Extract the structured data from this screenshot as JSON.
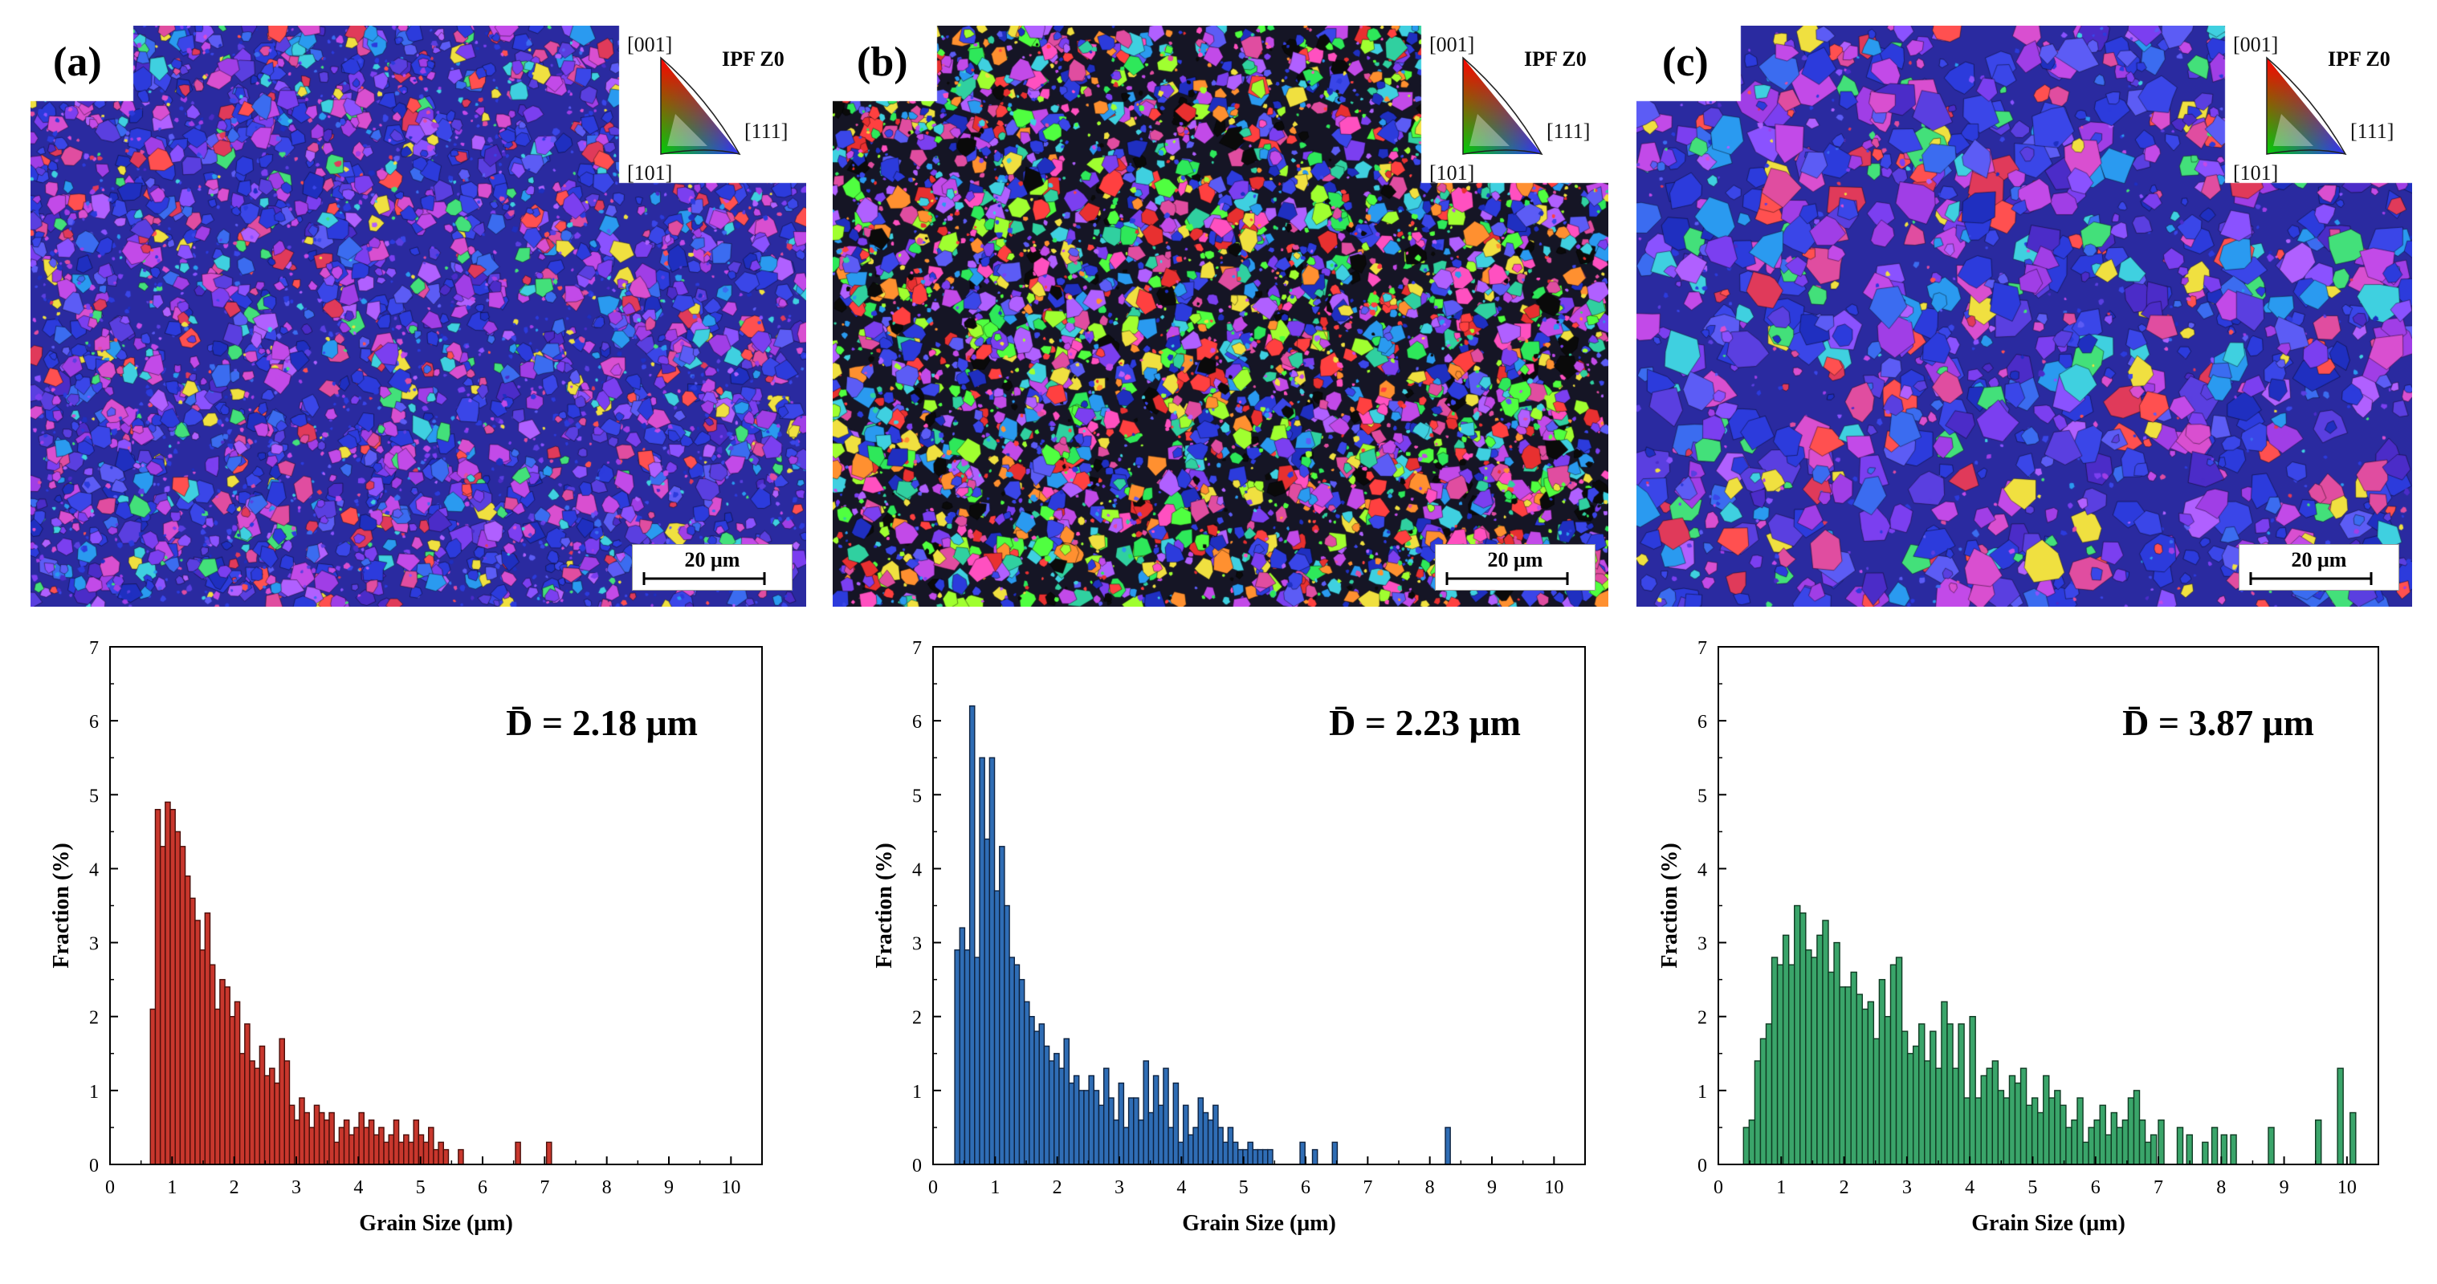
{
  "panels": [
    {
      "label": "(a)",
      "ipf": {
        "title": "IPF Z0",
        "top": "[001]",
        "left": "[101]",
        "right": "[111]"
      },
      "scalebar": "20 μm",
      "map_tint": "blue-magenta",
      "bar_color": "#c8372d",
      "bar_stroke": "#4a0e09"
    },
    {
      "label": "(b)",
      "ipf": {
        "title": "IPF Z0",
        "top": "[001]",
        "left": "[101]",
        "right": "[111]"
      },
      "scalebar": "20 μm",
      "map_tint": "mixed",
      "bar_color": "#2f6db5",
      "bar_stroke": "#0d2240"
    },
    {
      "label": "(c)",
      "ipf": {
        "title": "IPF Z0",
        "top": "[001]",
        "left": "[101]",
        "right": "[111]"
      },
      "scalebar": "20 μm",
      "map_tint": "blue-magenta",
      "bar_color": "#3aa56a",
      "bar_stroke": "#0f3a22"
    }
  ],
  "chart_data": [
    {
      "type": "bar",
      "title": "",
      "annotation": "D̄ = 2.18 μm",
      "xlabel": "Grain Size (μm)",
      "ylabel": "Fraction (%)",
      "xlim": [
        0,
        10.5
      ],
      "ylim": [
        0,
        7
      ],
      "xticks": [
        0,
        1,
        2,
        3,
        4,
        5,
        6,
        7,
        8,
        9,
        10
      ],
      "yticks": [
        0,
        1,
        2,
        3,
        4,
        5,
        6,
        7
      ],
      "bin_width": 0.08,
      "x": [
        0.65,
        0.73,
        0.81,
        0.89,
        0.97,
        1.05,
        1.13,
        1.21,
        1.29,
        1.37,
        1.45,
        1.53,
        1.61,
        1.69,
        1.77,
        1.85,
        1.93,
        2.01,
        2.09,
        2.17,
        2.25,
        2.33,
        2.41,
        2.49,
        2.57,
        2.65,
        2.73,
        2.81,
        2.89,
        2.97,
        3.05,
        3.13,
        3.21,
        3.29,
        3.37,
        3.45,
        3.53,
        3.61,
        3.69,
        3.77,
        3.85,
        3.93,
        4.01,
        4.09,
        4.17,
        4.25,
        4.33,
        4.41,
        4.49,
        4.57,
        4.65,
        4.73,
        4.81,
        4.89,
        4.97,
        5.05,
        5.13,
        5.21,
        5.29,
        5.37,
        5.61,
        6.53,
        7.03
      ],
      "values": [
        2.1,
        4.8,
        4.3,
        4.9,
        4.8,
        4.5,
        4.3,
        3.9,
        3.6,
        3.3,
        2.9,
        3.4,
        2.7,
        2.1,
        2.5,
        2.4,
        2.0,
        2.2,
        1.5,
        1.9,
        1.4,
        1.3,
        1.6,
        1.2,
        1.3,
        1.1,
        1.7,
        1.4,
        0.8,
        0.6,
        0.9,
        0.7,
        0.5,
        0.8,
        0.7,
        0.6,
        0.7,
        0.3,
        0.5,
        0.6,
        0.4,
        0.5,
        0.7,
        0.5,
        0.6,
        0.4,
        0.5,
        0.3,
        0.4,
        0.6,
        0.3,
        0.4,
        0.3,
        0.6,
        0.4,
        0.3,
        0.5,
        0.2,
        0.3,
        0.2,
        0.2,
        0.3,
        0.3
      ]
    },
    {
      "type": "bar",
      "title": "",
      "annotation": "D̄ = 2.23 μm",
      "xlabel": "Grain Size (μm)",
      "ylabel": "Fraction (%)",
      "xlim": [
        0,
        10.5
      ],
      "ylim": [
        0,
        7
      ],
      "xticks": [
        0,
        1,
        2,
        3,
        4,
        5,
        6,
        7,
        8,
        9,
        10
      ],
      "yticks": [
        0,
        1,
        2,
        3,
        4,
        5,
        6,
        7
      ],
      "bin_width": 0.08,
      "x": [
        0.35,
        0.43,
        0.51,
        0.59,
        0.67,
        0.75,
        0.83,
        0.91,
        0.99,
        1.07,
        1.15,
        1.23,
        1.31,
        1.39,
        1.47,
        1.55,
        1.63,
        1.71,
        1.79,
        1.87,
        1.95,
        2.03,
        2.11,
        2.19,
        2.27,
        2.35,
        2.43,
        2.51,
        2.59,
        2.67,
        2.75,
        2.83,
        2.91,
        2.99,
        3.07,
        3.15,
        3.23,
        3.31,
        3.39,
        3.47,
        3.55,
        3.63,
        3.71,
        3.79,
        3.87,
        3.95,
        4.03,
        4.11,
        4.19,
        4.27,
        4.35,
        4.43,
        4.51,
        4.59,
        4.67,
        4.75,
        4.83,
        4.91,
        4.99,
        5.07,
        5.15,
        5.23,
        5.31,
        5.39,
        5.91,
        6.11,
        6.43,
        8.25
      ],
      "values": [
        2.9,
        3.2,
        2.9,
        6.2,
        2.8,
        5.5,
        4.4,
        5.5,
        3.7,
        4.3,
        3.5,
        2.8,
        2.7,
        2.5,
        2.2,
        2.0,
        1.8,
        1.9,
        1.6,
        1.4,
        1.5,
        1.3,
        1.7,
        1.1,
        1.2,
        1.0,
        1.0,
        1.2,
        1.0,
        0.8,
        1.3,
        0.9,
        0.6,
        1.1,
        0.5,
        0.9,
        0.9,
        0.6,
        1.4,
        0.7,
        1.2,
        0.8,
        1.3,
        0.5,
        1.1,
        0.3,
        0.8,
        0.4,
        0.5,
        0.9,
        0.7,
        0.6,
        0.8,
        0.5,
        0.3,
        0.5,
        0.3,
        0.2,
        0.2,
        0.3,
        0.2,
        0.2,
        0.2,
        0.2,
        0.3,
        0.2,
        0.3,
        0.5
      ]
    },
    {
      "type": "bar",
      "title": "",
      "annotation": "D̄ = 3.87 μm",
      "xlabel": "Grain Size (μm)",
      "ylabel": "Fraction (%)",
      "xlim": [
        0,
        10.5
      ],
      "ylim": [
        0,
        7
      ],
      "xticks": [
        0,
        1,
        2,
        3,
        4,
        5,
        6,
        7,
        8,
        9,
        10
      ],
      "yticks": [
        0,
        1,
        2,
        3,
        4,
        5,
        6,
        7
      ],
      "bin_width": 0.09,
      "x": [
        0.4,
        0.49,
        0.58,
        0.67,
        0.76,
        0.85,
        0.94,
        1.03,
        1.12,
        1.21,
        1.3,
        1.39,
        1.48,
        1.57,
        1.66,
        1.75,
        1.84,
        1.93,
        2.02,
        2.11,
        2.2,
        2.29,
        2.38,
        2.47,
        2.56,
        2.65,
        2.74,
        2.83,
        2.92,
        3.01,
        3.1,
        3.19,
        3.28,
        3.37,
        3.46,
        3.55,
        3.64,
        3.73,
        3.82,
        3.91,
        4.0,
        4.09,
        4.18,
        4.27,
        4.36,
        4.45,
        4.54,
        4.63,
        4.72,
        4.81,
        4.9,
        4.99,
        5.08,
        5.17,
        5.26,
        5.35,
        5.44,
        5.53,
        5.62,
        5.71,
        5.8,
        5.89,
        5.98,
        6.07,
        6.16,
        6.25,
        6.34,
        6.43,
        6.52,
        6.61,
        6.7,
        6.79,
        6.88,
        7.0,
        7.3,
        7.45,
        7.7,
        7.85,
        8.0,
        8.15,
        8.75,
        9.5,
        9.85,
        10.05
      ],
      "values": [
        0.5,
        0.6,
        1.4,
        1.7,
        1.9,
        2.8,
        2.7,
        3.1,
        2.7,
        3.5,
        3.4,
        2.9,
        2.8,
        3.1,
        3.3,
        2.6,
        3.0,
        2.4,
        2.4,
        2.6,
        2.3,
        2.1,
        2.2,
        1.7,
        2.5,
        2.0,
        2.7,
        2.8,
        1.8,
        1.5,
        1.6,
        1.9,
        1.4,
        1.8,
        1.3,
        2.2,
        1.9,
        1.3,
        1.9,
        0.9,
        2.0,
        0.9,
        1.2,
        1.3,
        1.4,
        1.0,
        0.9,
        1.2,
        1.1,
        1.3,
        0.8,
        0.9,
        0.7,
        1.2,
        0.9,
        1.0,
        0.8,
        0.5,
        0.6,
        0.9,
        0.3,
        0.5,
        0.6,
        0.8,
        0.4,
        0.7,
        0.5,
        0.6,
        0.9,
        1.0,
        0.6,
        0.3,
        0.4,
        0.6,
        0.5,
        0.4,
        0.3,
        0.5,
        0.4,
        0.4,
        0.5,
        0.6,
        1.3,
        0.7
      ]
    }
  ]
}
